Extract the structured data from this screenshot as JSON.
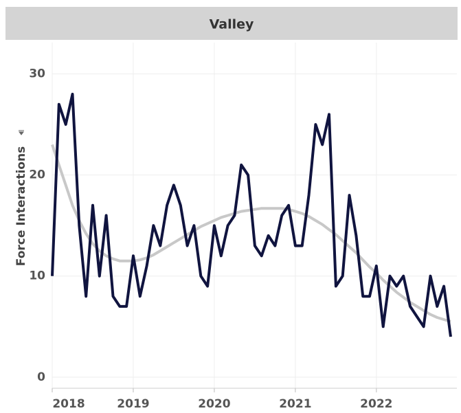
{
  "chart_data": {
    "type": "line",
    "title": "Valley",
    "y_label": "Force Interactions",
    "categories": [
      "2018",
      null,
      null,
      null,
      null,
      null,
      null,
      null,
      null,
      null,
      null,
      null,
      "2019",
      null,
      null,
      null,
      null,
      null,
      null,
      null,
      null,
      null,
      null,
      null,
      "2020",
      null,
      null,
      null,
      null,
      null,
      null,
      null,
      null,
      null,
      null,
      null,
      "2021",
      null,
      null,
      null,
      null,
      null,
      null,
      null,
      null,
      null,
      null,
      null,
      "2022",
      null,
      null,
      null,
      null,
      null,
      null,
      null,
      null,
      null,
      null,
      null
    ],
    "series": [
      {
        "color": "#c8c8c8",
        "values": [
          23,
          21,
          19,
          17,
          15.5,
          14.2,
          13.2,
          12.5,
          12,
          11.7,
          11.5,
          11.5,
          11.5,
          11.6,
          11.8,
          12.1,
          12.5,
          12.9,
          13.3,
          13.7,
          14.1,
          14.5,
          14.9,
          15.2,
          15.5,
          15.8,
          16.0,
          16.2,
          16.4,
          16.5,
          16.6,
          16.7,
          16.7,
          16.7,
          16.7,
          16.6,
          16.4,
          16.2,
          15.9,
          15.5,
          15.1,
          14.6,
          14.1,
          13.5,
          12.9,
          12.3,
          11.6,
          10.9,
          10.3,
          9.6,
          9.0,
          8.4,
          7.9,
          7.4,
          7.0,
          6.6,
          6.2,
          5.9,
          5.7,
          5.5
        ]
      },
      {
        "color": "#10143f",
        "values": [
          10,
          27,
          25,
          28,
          15,
          8,
          17,
          10,
          16,
          8,
          7,
          7,
          12,
          8,
          11,
          15,
          13,
          17,
          19,
          17,
          13,
          15,
          10,
          9,
          15,
          12,
          15,
          16,
          21,
          20,
          13,
          12,
          14,
          13,
          16,
          17,
          13,
          13,
          18,
          25,
          23,
          26,
          9,
          10,
          18,
          14,
          8,
          8,
          11,
          5,
          10,
          9,
          10,
          7,
          6,
          5,
          10,
          7,
          9,
          4
        ]
      }
    ],
    "ylim": [
      -1.1,
      33.1
    ],
    "yticks": [
      0,
      10,
      20,
      30
    ],
    "grid": true
  }
}
